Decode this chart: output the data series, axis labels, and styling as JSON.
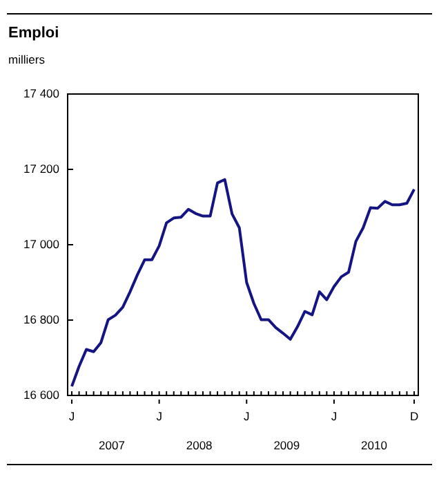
{
  "chart_data": {
    "type": "line",
    "title": "Emploi",
    "ylabel": "milliers",
    "categories": [
      "J",
      null,
      null,
      null,
      null,
      null,
      null,
      null,
      null,
      null,
      null,
      null,
      "J",
      null,
      null,
      null,
      null,
      null,
      null,
      null,
      null,
      null,
      null,
      null,
      "J",
      null,
      null,
      null,
      null,
      null,
      null,
      null,
      null,
      null,
      null,
      null,
      "J",
      null,
      null,
      null,
      null,
      null,
      null,
      null,
      null,
      null,
      null,
      "D"
    ],
    "series": [
      {
        "color": "#141483",
        "values": [
          16624,
          16677,
          16722,
          16716,
          16740,
          16801,
          16813,
          16834,
          16875,
          16920,
          16960,
          16960,
          16997,
          17058,
          17071,
          17073,
          17094,
          17083,
          17076,
          17076,
          17164,
          17173,
          17082,
          17045,
          16900,
          16844,
          16801,
          16801,
          16780,
          16765,
          16749,
          16783,
          16823,
          16814,
          16875,
          16854,
          16889,
          16915,
          16927,
          17009,
          17045,
          17098,
          17097,
          17115,
          17106,
          17106,
          17110,
          17147
        ]
      }
    ],
    "ylim": [
      16600,
      17400
    ],
    "yticks": [
      {
        "value": 16600,
        "label": "16 600"
      },
      {
        "value": 16800,
        "label": "16 800"
      },
      {
        "value": 17000,
        "label": "17 000"
      },
      {
        "value": 17200,
        "label": "17 200"
      },
      {
        "value": 17400,
        "label": "17 400"
      }
    ],
    "annotations": [
      "2007",
      "2008",
      "2009",
      "2010"
    ],
    "grid": false,
    "marker": "none",
    "line_style": "solid"
  }
}
